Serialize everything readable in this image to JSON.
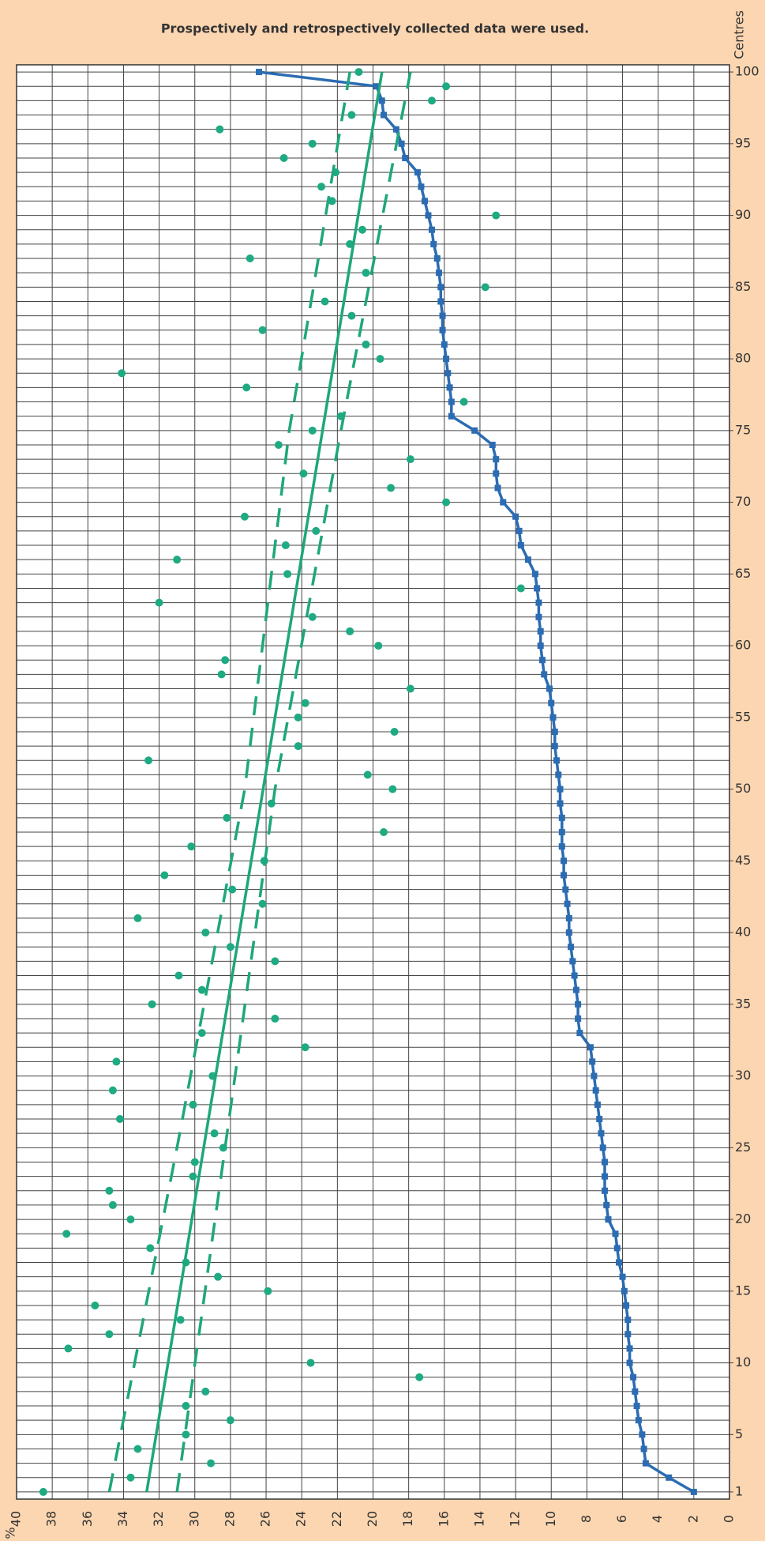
{
  "chart_data": {
    "type": "line",
    "title": "Prospectively and retrospectively collected data were used.",
    "xlabel": "%",
    "ylabel": "Centres",
    "xlim": [
      40,
      0
    ],
    "ylim": [
      0.5,
      100.5
    ],
    "xticks": [
      0,
      2,
      4,
      6,
      8,
      10,
      12,
      14,
      16,
      18,
      20,
      22,
      24,
      26,
      28,
      30,
      32,
      34,
      36,
      38,
      40
    ],
    "yticks": [
      1,
      5,
      10,
      15,
      20,
      25,
      30,
      35,
      40,
      45,
      50,
      55,
      60,
      65,
      70,
      75,
      80,
      85,
      90,
      95,
      100
    ],
    "grid": true,
    "centres": [
      1,
      2,
      3,
      4,
      5,
      6,
      7,
      8,
      9,
      10,
      11,
      12,
      13,
      14,
      15,
      16,
      17,
      18,
      19,
      20,
      21,
      22,
      23,
      24,
      25,
      26,
      27,
      28,
      29,
      30,
      31,
      32,
      33,
      34,
      35,
      36,
      37,
      38,
      39,
      40,
      41,
      42,
      43,
      44,
      45,
      46,
      47,
      48,
      49,
      50,
      51,
      52,
      53,
      54,
      55,
      56,
      57,
      58,
      59,
      60,
      61,
      62,
      63,
      64,
      65,
      66,
      67,
      68,
      69,
      70,
      71,
      72,
      73,
      74,
      75,
      76,
      77,
      78,
      79,
      80,
      81,
      82,
      83,
      84,
      85,
      86,
      87,
      88,
      89,
      90,
      91,
      92,
      93,
      94,
      95,
      96,
      97,
      98,
      99,
      100
    ],
    "series": [
      {
        "style": "line-markers",
        "color": "#2b6cb3",
        "values": [
          2.0,
          3.4,
          4.7,
          4.8,
          4.9,
          5.1,
          5.2,
          5.3,
          5.4,
          5.6,
          5.6,
          5.7,
          5.7,
          5.8,
          5.9,
          6.0,
          6.2,
          6.3,
          6.4,
          6.8,
          6.9,
          7.0,
          7.0,
          7.0,
          7.1,
          7.2,
          7.3,
          7.4,
          7.5,
          7.6,
          7.7,
          7.8,
          8.4,
          8.5,
          8.5,
          8.6,
          8.7,
          8.8,
          8.9,
          9.0,
          9.0,
          9.1,
          9.2,
          9.3,
          9.3,
          9.4,
          9.4,
          9.4,
          9.5,
          9.5,
          9.6,
          9.7,
          9.8,
          9.8,
          9.9,
          10.0,
          10.1,
          10.4,
          10.5,
          10.6,
          10.6,
          10.7,
          10.7,
          10.8,
          10.9,
          11.3,
          11.7,
          11.8,
          12.0,
          12.7,
          13.0,
          13.1,
          13.1,
          13.3,
          14.3,
          15.6,
          15.6,
          15.7,
          15.8,
          15.9,
          16.0,
          16.1,
          16.1,
          16.2,
          16.2,
          16.3,
          16.4,
          16.6,
          16.7,
          16.9,
          17.1,
          17.3,
          17.5,
          18.2,
          18.4,
          18.7,
          19.4,
          19.5,
          19.8,
          26.4
        ]
      },
      {
        "style": "dots",
        "color": "#1eaa82",
        "values": [
          38.5,
          33.6,
          29.1,
          33.2,
          30.5,
          28.0,
          30.5,
          29.4,
          17.4,
          23.5,
          37.1,
          34.8,
          30.8,
          35.6,
          25.9,
          28.7,
          30.5,
          32.5,
          37.2,
          33.6,
          34.6,
          34.8,
          30.1,
          30.0,
          28.4,
          28.9,
          34.2,
          30.1,
          34.6,
          29.0,
          34.4,
          23.8,
          29.6,
          25.5,
          32.4,
          29.6,
          30.9,
          25.5,
          28.0,
          29.4,
          33.2,
          26.2,
          27.9,
          31.7,
          26.1,
          30.2,
          19.4,
          28.2,
          25.7,
          18.9,
          20.3,
          32.6,
          24.2,
          18.8,
          24.2,
          23.8,
          17.9,
          28.5,
          28.3,
          19.7,
          21.3,
          23.4,
          32.0,
          11.7,
          24.8,
          31.0,
          24.9,
          23.2,
          27.2,
          15.9,
          19.0,
          23.9,
          17.9,
          25.3,
          23.4,
          21.8,
          14.9,
          27.1,
          34.1,
          19.6,
          20.4,
          26.2,
          21.2,
          22.7,
          13.7,
          20.4,
          26.9,
          21.3,
          20.6,
          13.1,
          22.3,
          22.9,
          22.1,
          25.0,
          23.4,
          28.6,
          21.2,
          16.7,
          15.9,
          20.8
        ]
      },
      {
        "style": "solid",
        "color": "#1ea77c",
        "centres": [
          1,
          100
        ],
        "values": [
          32.7,
          19.5
        ]
      },
      {
        "style": "dashed",
        "color": "#1ea77c",
        "centres": [
          1,
          25,
          50,
          75,
          100
        ],
        "values": [
          34.8,
          31.0,
          27.2,
          24.7,
          21.3
        ]
      },
      {
        "style": "dashed",
        "color": "#1ea77c",
        "centres": [
          1,
          25,
          50,
          75,
          100
        ],
        "values": [
          31.0,
          28.3,
          25.5,
          21.8,
          17.9
        ]
      }
    ]
  }
}
